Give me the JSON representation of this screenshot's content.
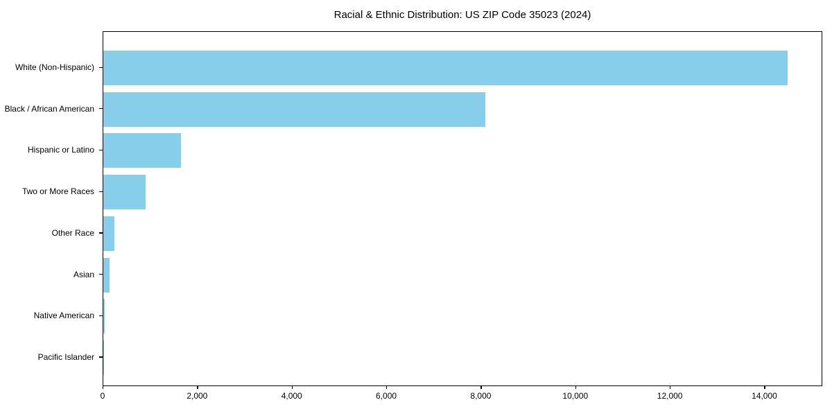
{
  "chart_data": {
    "type": "bar",
    "orientation": "horizontal",
    "title": "Racial & Ethnic Distribution: US ZIP Code 35023 (2024)",
    "categories": [
      "White (Non-Hispanic)",
      "Black / African American",
      "Hispanic or Latino",
      "Two or More Races",
      "Other Race",
      "Asian",
      "Native American",
      "Pacific Islander"
    ],
    "values": [
      14500,
      8100,
      1650,
      900,
      230,
      130,
      30,
      10
    ],
    "xlabel": "",
    "ylabel": "",
    "xlim": [
      0,
      15225
    ],
    "x_ticks": [
      0,
      2000,
      4000,
      6000,
      8000,
      10000,
      12000,
      14000
    ],
    "grid": false,
    "legend": "none",
    "colors": {
      "bar": "#87CEEB",
      "text": "#000000",
      "axis": "#000000",
      "background": "#FFFFFF"
    }
  }
}
